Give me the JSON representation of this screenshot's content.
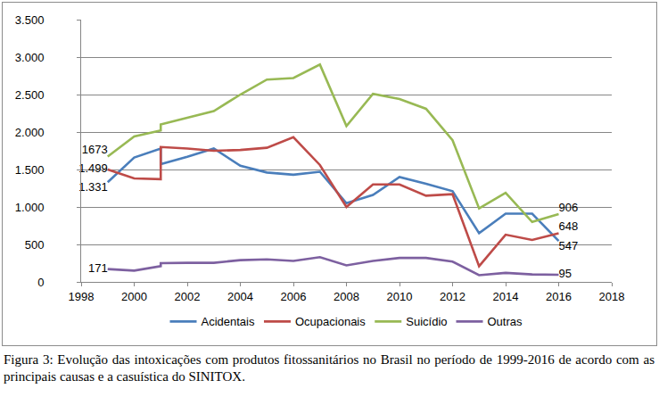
{
  "chart_data": {
    "type": "line",
    "caption": "Figura 3: Evolução das intoxicações com produtos fitossanitários no Brasil no período de 1999-2016 de acordo com as principais causas e a casuística do SINITOX.",
    "x": [
      1999,
      2000,
      2001,
      2001,
      2002,
      2003,
      2004,
      2005,
      2006,
      2007,
      2008,
      2009,
      2010,
      2011,
      2012,
      2013,
      2014,
      2015,
      2016
    ],
    "series": [
      {
        "name": "Acidentais",
        "color": "#4a7ebb",
        "values": [
          1331,
          1660,
          1780,
          1570,
          1670,
          1780,
          1550,
          1460,
          1430,
          1470,
          1050,
          1160,
          1400,
          1310,
          1210,
          650,
          910,
          910,
          547
        ],
        "value_labels": [
          "1.331",
          null,
          null,
          null,
          null,
          null,
          null,
          null,
          null,
          null,
          null,
          null,
          null,
          null,
          null,
          null,
          null,
          null,
          "547"
        ]
      },
      {
        "name": "Ocupacionais",
        "color": "#be4b48",
        "values": [
          1499,
          1380,
          1370,
          1800,
          1780,
          1750,
          1760,
          1790,
          1930,
          1560,
          1000,
          1300,
          1300,
          1150,
          1170,
          210,
          630,
          560,
          648
        ],
        "value_labels": [
          "1.499",
          null,
          null,
          null,
          null,
          null,
          null,
          null,
          null,
          null,
          null,
          null,
          null,
          null,
          null,
          null,
          null,
          null,
          "648"
        ]
      },
      {
        "name": "Suicídio",
        "color": "#98b954",
        "values": [
          1673,
          1940,
          2020,
          2100,
          2190,
          2280,
          2500,
          2700,
          2720,
          2900,
          2080,
          2510,
          2440,
          2310,
          1890,
          980,
          1190,
          800,
          906
        ],
        "value_labels": [
          "1673",
          null,
          null,
          null,
          null,
          null,
          null,
          null,
          null,
          null,
          null,
          null,
          null,
          null,
          null,
          null,
          null,
          null,
          "906"
        ]
      },
      {
        "name": "Outras",
        "color": "#7d60a0",
        "values": [
          171,
          150,
          210,
          250,
          255,
          255,
          290,
          300,
          280,
          330,
          220,
          280,
          320,
          320,
          270,
          90,
          120,
          100,
          95
        ],
        "value_labels": [
          "171",
          null,
          null,
          null,
          null,
          null,
          null,
          null,
          null,
          null,
          null,
          null,
          null,
          null,
          null,
          null,
          null,
          null,
          "95"
        ]
      }
    ],
    "xlim": [
      1998,
      2018
    ],
    "xticks": [
      1998,
      2000,
      2002,
      2004,
      2006,
      2008,
      2010,
      2012,
      2014,
      2016,
      2018
    ],
    "ylim": [
      0,
      3500
    ],
    "yticks": [
      0,
      500,
      {
        "value": 1000,
        "label": "1.000"
      },
      {
        "value": 1500,
        "label": "1.500"
      },
      {
        "value": 2000,
        "label": "2.000"
      },
      {
        "value": 2500,
        "label": "2.500"
      },
      {
        "value": 3000,
        "label": "3.000"
      },
      {
        "value": 3500,
        "label": "3.500"
      }
    ],
    "grid": true,
    "legend": "bottom"
  }
}
